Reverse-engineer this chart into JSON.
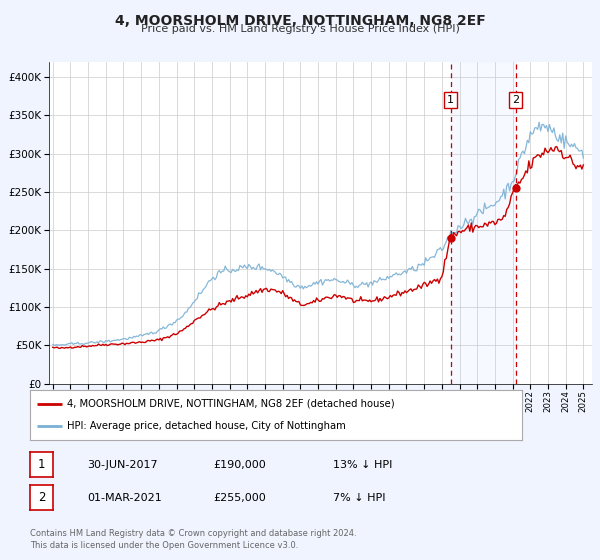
{
  "title": "4, MOORSHOLM DRIVE, NOTTINGHAM, NG8 2EF",
  "subtitle": "Price paid vs. HM Land Registry's House Price Index (HPI)",
  "legend_line1": "4, MOORSHOLM DRIVE, NOTTINGHAM, NG8 2EF (detached house)",
  "legend_line2": "HPI: Average price, detached house, City of Nottingham",
  "sale1_label": "1",
  "sale1_date": "30-JUN-2017",
  "sale1_price": "£190,000",
  "sale1_hpi": "13% ↓ HPI",
  "sale1_year": 2017.5,
  "sale1_value": 190000,
  "sale2_label": "2",
  "sale2_date": "01-MAR-2021",
  "sale2_price": "£255,000",
  "sale2_hpi": "7% ↓ HPI",
  "sale2_year": 2021.17,
  "sale2_value": 255000,
  "red_line_color": "#cc0000",
  "blue_line_color": "#7ab0d4",
  "vline_color": "#cc0000",
  "background_color": "#f0f4ff",
  "plot_bg_color": "#ffffff",
  "grid_color": "#cccccc",
  "ylim": [
    0,
    420000
  ],
  "xlim_start": 1994.8,
  "xlim_end": 2025.5,
  "footer_text": "Contains HM Land Registry data © Crown copyright and database right 2024.\nThis data is licensed under the Open Government Licence v3.0."
}
